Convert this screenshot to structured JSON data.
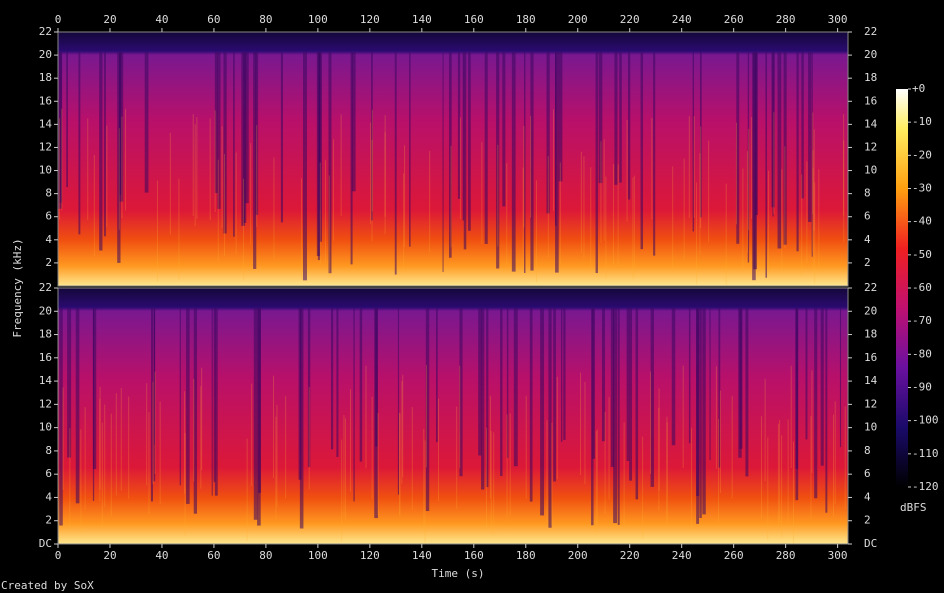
{
  "chart_data": {
    "type": "spectrogram",
    "x_label": "Time (s)",
    "y_label": "Frequency (kHz)",
    "xlim": [
      0,
      304
    ],
    "xticks": [
      0,
      20,
      40,
      60,
      80,
      100,
      120,
      140,
      160,
      180,
      200,
      220,
      240,
      260,
      280,
      300
    ],
    "channels": [
      {
        "ylim": [
          0,
          22
        ],
        "yticks": [
          2,
          4,
          6,
          8,
          10,
          12,
          14,
          16,
          18,
          20,
          22
        ]
      },
      {
        "ylim": [
          0,
          22
        ],
        "yticks": [
          {
            "value": 0,
            "label": "DC"
          },
          2,
          4,
          6,
          8,
          10,
          12,
          14,
          16,
          18,
          20,
          22
        ]
      }
    ],
    "colorbar": {
      "label": "dBFS",
      "lim": [
        -120,
        0
      ],
      "ticks": [
        {
          "value": 0,
          "label": "+0"
        },
        -10,
        -20,
        -30,
        -40,
        -50,
        -60,
        -70,
        -80,
        -90,
        -100,
        -110,
        -120
      ]
    },
    "credit": "Created by SoX"
  }
}
